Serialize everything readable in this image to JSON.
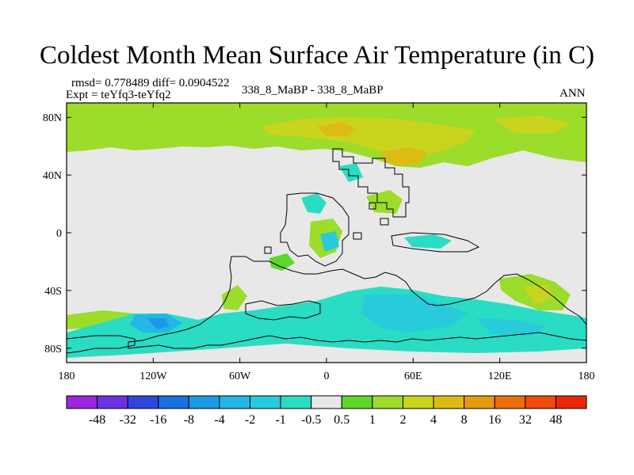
{
  "figure": {
    "title": "Coldest Month Mean Surface Air Temperature (in C)",
    "stats": "rmsd= 0.778489 diff= 0.0904522",
    "experiment": "Expt = teYfq3-teYfq2",
    "period": "338_8_MaBP - 338_8_MaBP",
    "season": "ANN"
  },
  "axes": {
    "x_ticks": [
      {
        "lon": -180,
        "label": "180"
      },
      {
        "lon": -120,
        "label": "120W"
      },
      {
        "lon": -60,
        "label": "60W"
      },
      {
        "lon": 0,
        "label": "0"
      },
      {
        "lon": 60,
        "label": "60E"
      },
      {
        "lon": 120,
        "label": "120E"
      },
      {
        "lon": 180,
        "label": "180"
      }
    ],
    "y_ticks": [
      {
        "lat": 80,
        "label": "80N"
      },
      {
        "lat": 40,
        "label": "40N"
      },
      {
        "lat": 0,
        "label": "0"
      },
      {
        "lat": -40,
        "label": "40S"
      },
      {
        "lat": -80,
        "label": "80S"
      }
    ],
    "lon_range": [
      -180,
      180
    ],
    "lat_range": [
      -90,
      90
    ]
  },
  "colorbar": {
    "labels": [
      "-48",
      "-32",
      "-16",
      "-8",
      "-4",
      "-2",
      "-1",
      "-0.5",
      "0.5",
      "1",
      "2",
      "4",
      "8",
      "16",
      "32",
      "48"
    ],
    "colors": [
      "#9b26e0",
      "#6a32e0",
      "#2f46dc",
      "#1a6ee0",
      "#1a9ae0",
      "#24b6e6",
      "#28cbdc",
      "#2adcc4",
      "#e8e8e8",
      "#5fd62a",
      "#9cdc2a",
      "#c8d41e",
      "#dcbc14",
      "#e69a10",
      "#ee6e0e",
      "#f04a0c",
      "#e8280a"
    ]
  },
  "map_colors": {
    "neutral": "#e8e8e8",
    "warm_light": "#9cdc2a",
    "warm_mid": "#c8d41e",
    "warm_strong": "#dcbc14",
    "warm_vivid": "#5fd62a",
    "cool_light": "#2adcc4",
    "cool_mid": "#28cbdc",
    "cool_strong": "#24b6e6",
    "cool_deep": "#1a9ae0",
    "coast": "#000000"
  }
}
